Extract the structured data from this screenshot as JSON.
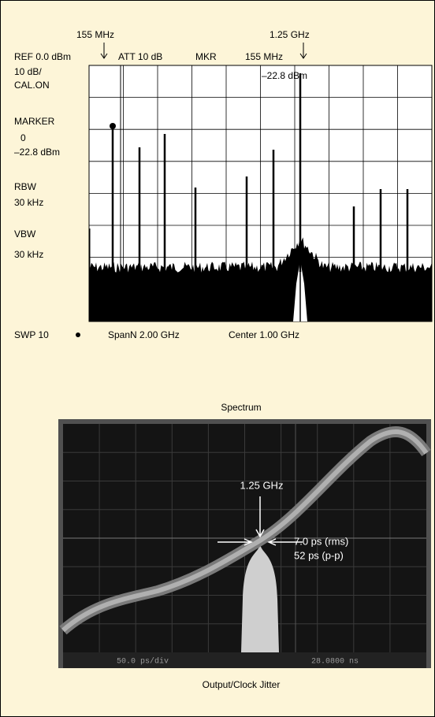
{
  "spectrum": {
    "marker_left": "155 MHz",
    "marker_right": "1.25 GHz",
    "ref": "REF 0.0 dBm",
    "att": "ATT 10 dB",
    "mkr": "MKR",
    "mkr_freq": "155 MHz",
    "mkr_level": "–22.8 dBm",
    "scale": "10 dB/",
    "cal": "CAL.ON",
    "marker_label": "MARKER",
    "marker_num": "0",
    "marker_level": "–22.8 dBm",
    "rbw": "RBW",
    "rbw_value": "30 kHz",
    "vbw": "VBW",
    "vbw_value": "30 kHz",
    "sweep": "SWP 10",
    "span": "SpanN 2.00 GHz",
    "center": "Center 1.00 GHz",
    "caption": "Spectrum"
  },
  "jitter": {
    "frequency": "1.25 GHz",
    "rms": "7.0 ps (rms)",
    "pp": "52 ps (p-p)",
    "timebase": "50.0 ps/div",
    "position": "28.0800 ns",
    "caption": "Output/Clock Jitter"
  }
}
